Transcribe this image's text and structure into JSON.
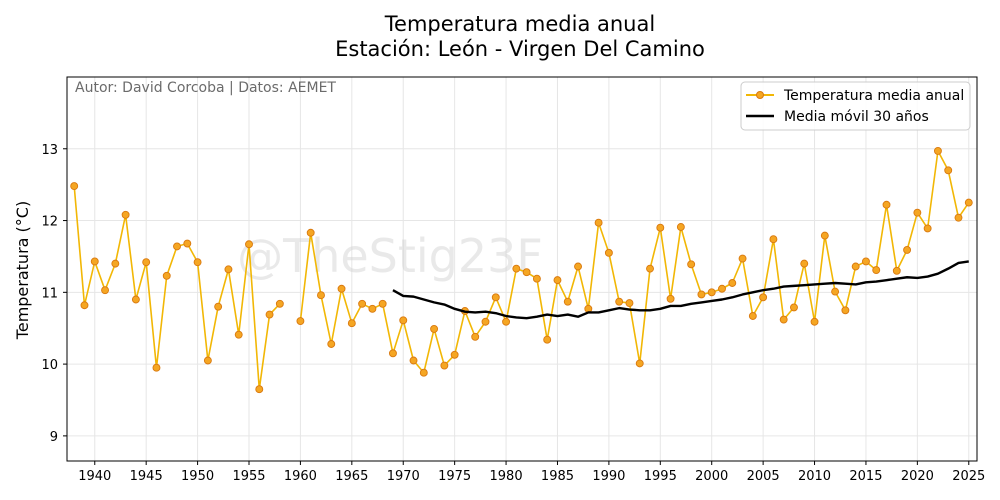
{
  "chart_data": {
    "type": "line",
    "title": "Temperatura media anual",
    "subtitle": "Estación: León - Virgen Del Camino",
    "xlabel": "",
    "ylabel": "Temperatura (°C)",
    "credit": "Autor: David Corcoba | Datos: AEMET",
    "watermark": "@TheStig23F",
    "xlim": [
      1937.3,
      2025.8
    ],
    "ylim": [
      8.65,
      14.0
    ],
    "xticks": [
      1940,
      1945,
      1950,
      1955,
      1960,
      1965,
      1970,
      1975,
      1980,
      1985,
      1990,
      1995,
      2000,
      2005,
      2010,
      2015,
      2020,
      2025
    ],
    "yticks": [
      9,
      10,
      11,
      12,
      13
    ],
    "grid": true,
    "legend_position": "top-right",
    "x": [
      1938,
      1939,
      1940,
      1941,
      1942,
      1943,
      1944,
      1945,
      1946,
      1947,
      1948,
      1949,
      1950,
      1951,
      1952,
      1953,
      1954,
      1955,
      1956,
      1957,
      1958,
      1959,
      1960,
      1961,
      1962,
      1963,
      1964,
      1965,
      1966,
      1967,
      1968,
      1969,
      1970,
      1971,
      1972,
      1973,
      1974,
      1975,
      1976,
      1977,
      1978,
      1979,
      1980,
      1981,
      1982,
      1983,
      1984,
      1985,
      1986,
      1987,
      1988,
      1989,
      1990,
      1991,
      1992,
      1993,
      1994,
      1995,
      1996,
      1997,
      1998,
      1999,
      2000,
      2001,
      2002,
      2003,
      2004,
      2005,
      2006,
      2007,
      2008,
      2009,
      2010,
      2011,
      2012,
      2013,
      2014,
      2015,
      2016,
      2017,
      2018,
      2019,
      2020,
      2021,
      2022,
      2023,
      2024,
      2025
    ],
    "series": [
      {
        "name": "Temperatura media anual",
        "color": "#f2b705",
        "marker_fill": "#f5a623",
        "marker_edge": "#d9790f",
        "values": [
          12.48,
          10.82,
          11.43,
          11.03,
          11.4,
          12.08,
          10.9,
          11.42,
          9.95,
          11.23,
          11.64,
          11.68,
          11.42,
          10.05,
          10.8,
          11.32,
          10.41,
          11.67,
          9.65,
          10.69,
          10.84,
          null,
          10.6,
          11.83,
          10.96,
          10.28,
          11.05,
          10.57,
          10.84,
          10.77,
          10.84,
          10.15,
          10.61,
          10.05,
          9.88,
          10.49,
          9.98,
          10.13,
          10.74,
          10.38,
          10.59,
          10.93,
          10.59,
          11.33,
          11.28,
          11.19,
          10.34,
          11.17,
          10.87,
          11.36,
          10.77,
          11.97,
          11.55,
          10.87,
          10.85,
          10.01,
          11.33,
          11.9,
          10.91,
          11.91,
          11.39,
          10.97,
          11.0,
          11.05,
          11.13,
          11.47,
          10.67,
          10.93,
          11.74,
          10.62,
          10.79,
          11.4,
          10.59,
          11.79,
          11.01,
          10.75,
          11.36,
          11.43,
          11.31,
          12.22,
          11.3,
          11.59,
          12.11,
          11.89,
          12.97,
          12.7,
          12.04,
          12.25
        ]
      },
      {
        "name": "Media móvil 30 años",
        "color": "#000000",
        "x": [
          1969,
          1970,
          1971,
          1972,
          1973,
          1974,
          1975,
          1976,
          1977,
          1978,
          1979,
          1980,
          1981,
          1982,
          1983,
          1984,
          1985,
          1986,
          1987,
          1988,
          1989,
          1990,
          1991,
          1992,
          1993,
          1994,
          1995,
          1996,
          1997,
          1998,
          1999,
          2000,
          2001,
          2002,
          2003,
          2004,
          2005,
          2006,
          2007,
          2008,
          2009,
          2010,
          2011,
          2012,
          2013,
          2014,
          2015,
          2016,
          2017,
          2018,
          2019,
          2020,
          2021,
          2022,
          2023,
          2024,
          2025
        ],
        "values": [
          11.03,
          10.95,
          10.94,
          10.9,
          10.86,
          10.83,
          10.77,
          10.73,
          10.72,
          10.73,
          10.71,
          10.67,
          10.65,
          10.64,
          10.66,
          10.69,
          10.67,
          10.69,
          10.66,
          10.72,
          10.72,
          10.75,
          10.78,
          10.76,
          10.75,
          10.75,
          10.77,
          10.81,
          10.81,
          10.84,
          10.86,
          10.88,
          10.9,
          10.93,
          10.97,
          11.0,
          11.03,
          11.05,
          11.08,
          11.09,
          11.1,
          11.11,
          11.12,
          11.13,
          11.12,
          11.11,
          11.14,
          11.15,
          11.17,
          11.19,
          11.21,
          11.2,
          11.22,
          11.26,
          11.33,
          11.41,
          11.43
        ]
      }
    ]
  }
}
